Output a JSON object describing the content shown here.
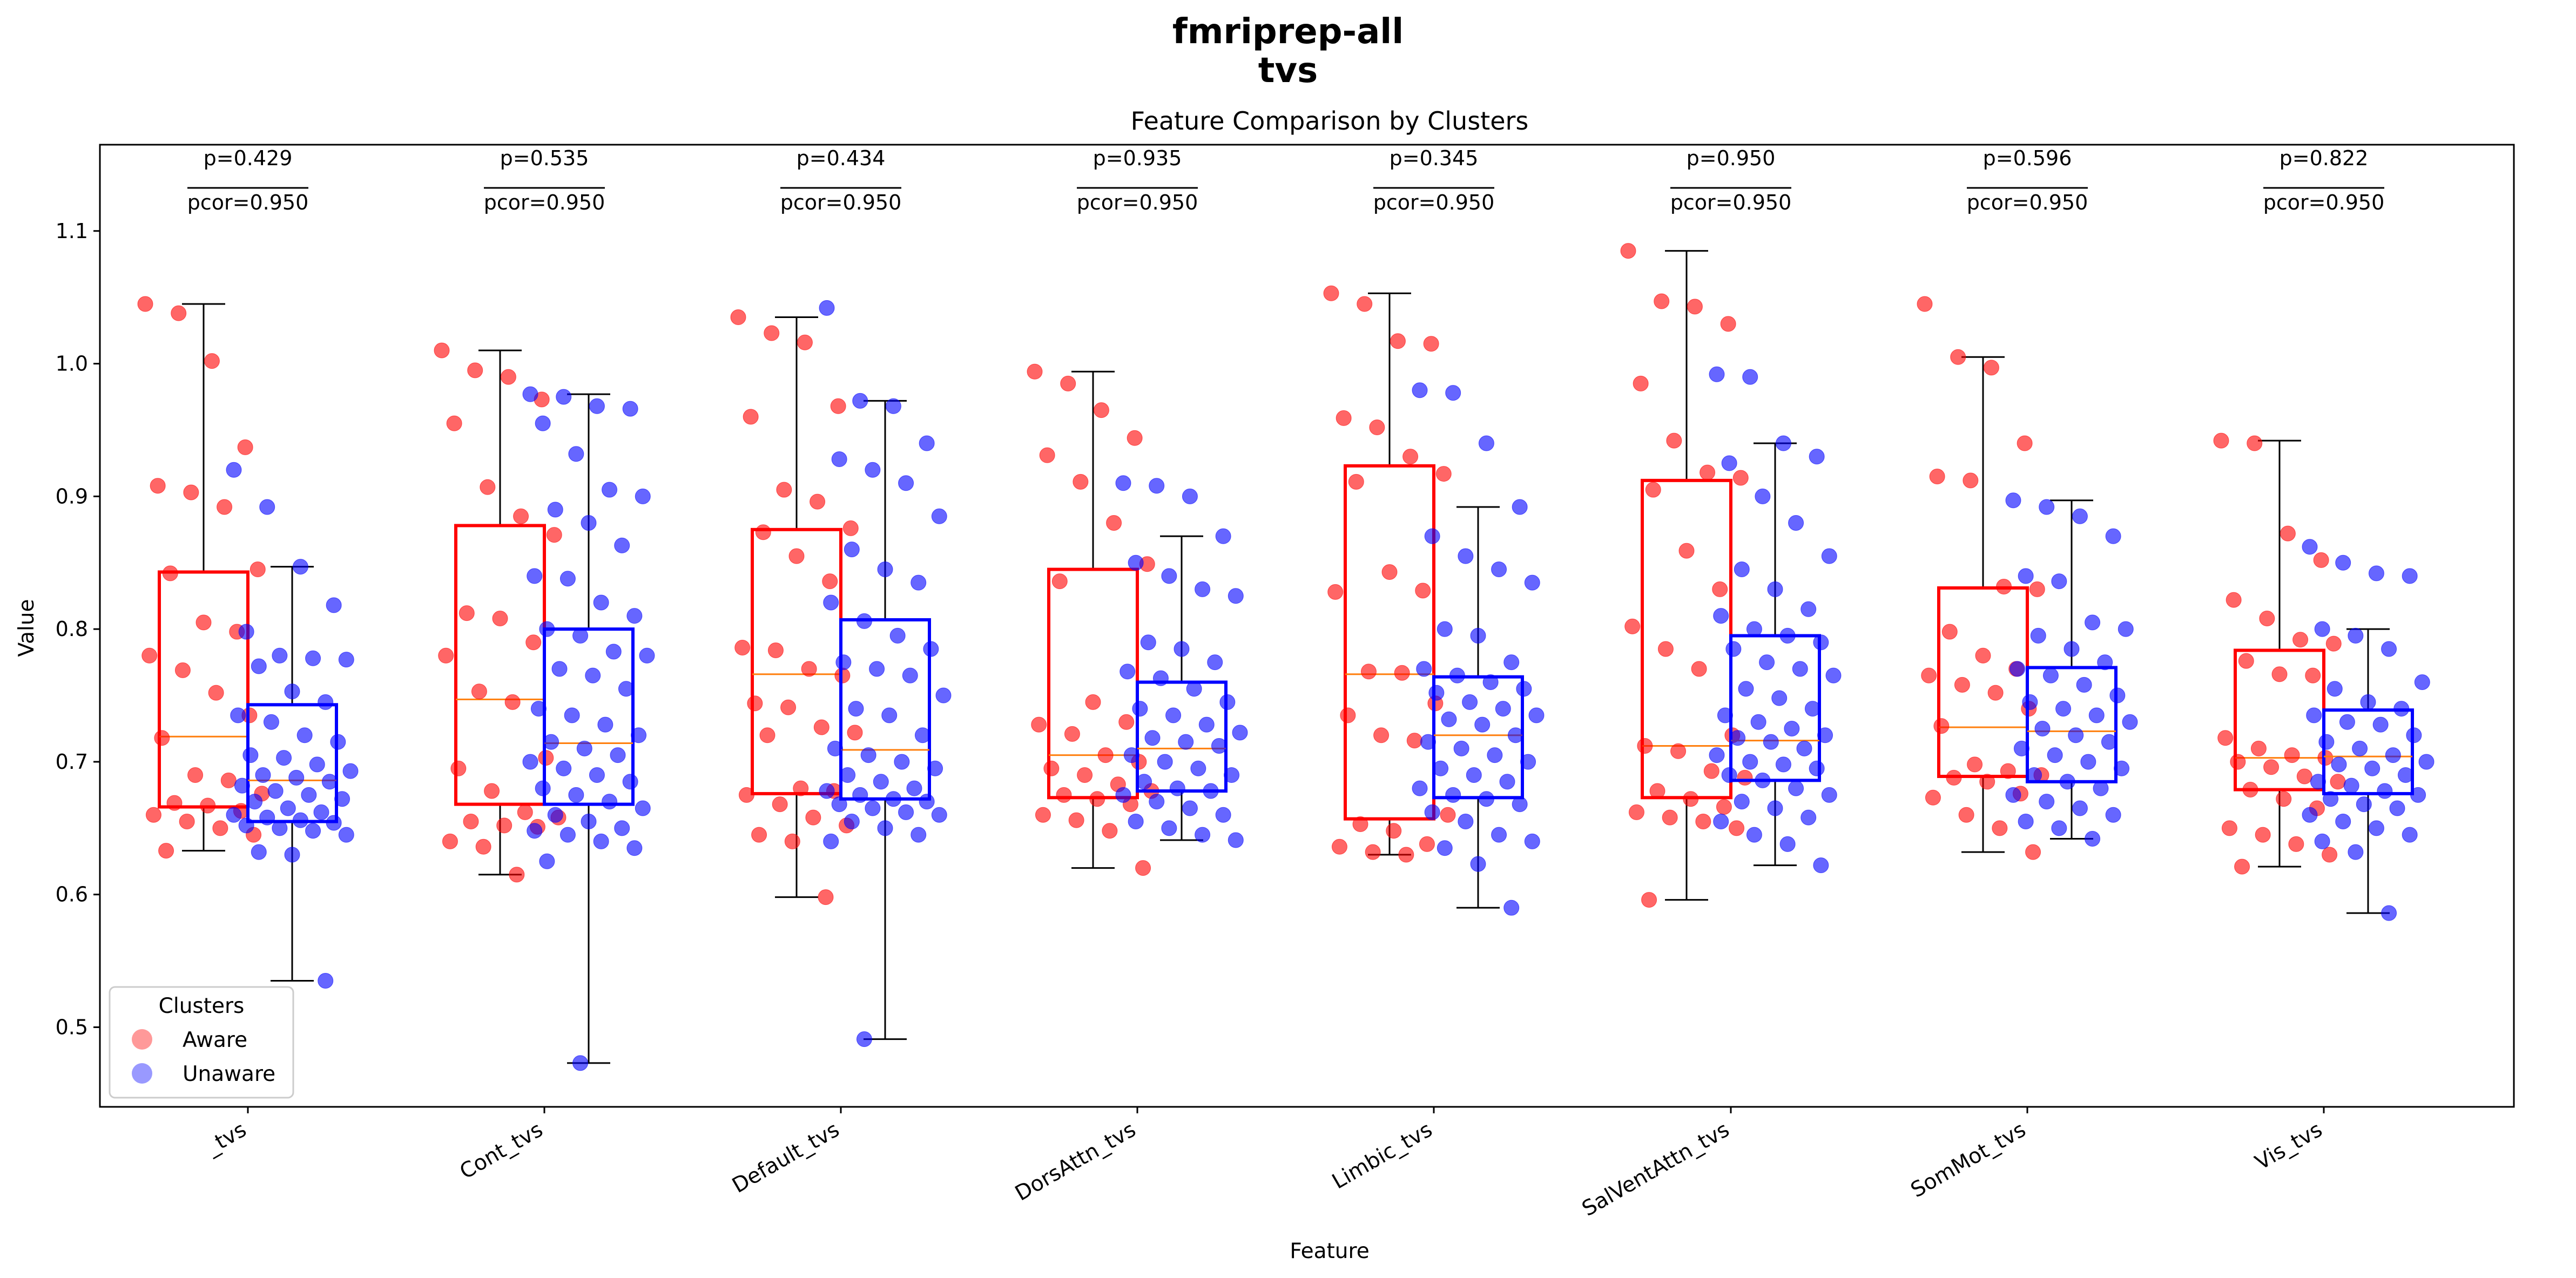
{
  "chart_data": {
    "type": "box",
    "suptitle": [
      "fmriprep-all",
      "tvs"
    ],
    "title": "Feature Comparison by Clusters",
    "xlabel": "Feature",
    "ylabel": "Value",
    "ylim": [
      0.44,
      1.165
    ],
    "yticks": [
      0.5,
      0.6,
      0.7,
      0.8,
      0.9,
      1.0,
      1.1
    ],
    "ytick_labels": [
      "0.5",
      "0.6",
      "0.7",
      "0.8",
      "0.9",
      "1.0",
      "1.1"
    ],
    "grid": false,
    "legend": {
      "title": "Clusters",
      "placement": "lower-left",
      "entries": [
        "Aware",
        "Unaware"
      ]
    },
    "colors": {
      "Aware": "#ff0000",
      "Unaware": "#0000ff",
      "median": "#ff7f0e"
    },
    "categories": [
      "_tvs",
      "Cont_tvs",
      "Default_tvs",
      "DorsAttn_tvs",
      "Limbic_tvs",
      "SalVentAttn_tvs",
      "SomMot_tvs",
      "Vis_tvs"
    ],
    "annotations": [
      {
        "p": "p=0.429",
        "pcor": "pcor=0.950"
      },
      {
        "p": "p=0.535",
        "pcor": "pcor=0.950"
      },
      {
        "p": "p=0.434",
        "pcor": "pcor=0.950"
      },
      {
        "p": "p=0.935",
        "pcor": "pcor=0.950"
      },
      {
        "p": "p=0.345",
        "pcor": "pcor=0.950"
      },
      {
        "p": "p=0.950",
        "pcor": "pcor=0.950"
      },
      {
        "p": "p=0.596",
        "pcor": "pcor=0.950"
      },
      {
        "p": "p=0.822",
        "pcor": "pcor=0.950"
      }
    ],
    "series": [
      {
        "name": "Aware",
        "boxes": [
          {
            "whislo": 0.633,
            "q1": 0.666,
            "med": 0.719,
            "q3": 0.843,
            "whishi": 1.045,
            "points": [
              1.045,
              1.038,
              1.002,
              0.937,
              0.908,
              0.903,
              0.892,
              0.845,
              0.842,
              0.805,
              0.798,
              0.78,
              0.769,
              0.752,
              0.735,
              0.718,
              0.69,
              0.686,
              0.676,
              0.669,
              0.667,
              0.663,
              0.66,
              0.655,
              0.65,
              0.645,
              0.633
            ]
          },
          {
            "whislo": 0.615,
            "q1": 0.668,
            "med": 0.747,
            "q3": 0.878,
            "whishi": 1.01,
            "points": [
              1.01,
              0.995,
              0.99,
              0.973,
              0.955,
              0.907,
              0.885,
              0.871,
              0.812,
              0.808,
              0.79,
              0.78,
              0.753,
              0.745,
              0.703,
              0.695,
              0.678,
              0.662,
              0.658,
              0.655,
              0.652,
              0.651,
              0.64,
              0.636,
              0.615
            ]
          },
          {
            "whislo": 0.598,
            "q1": 0.676,
            "med": 0.766,
            "q3": 0.875,
            "whishi": 1.035,
            "points": [
              1.035,
              1.023,
              1.016,
              0.968,
              0.96,
              0.905,
              0.896,
              0.876,
              0.873,
              0.855,
              0.836,
              0.786,
              0.784,
              0.77,
              0.765,
              0.744,
              0.741,
              0.726,
              0.722,
              0.72,
              0.68,
              0.678,
              0.675,
              0.668,
              0.658,
              0.652,
              0.645,
              0.64,
              0.598
            ]
          },
          {
            "whislo": 0.62,
            "q1": 0.673,
            "med": 0.705,
            "q3": 0.845,
            "whishi": 0.994,
            "points": [
              0.994,
              0.985,
              0.965,
              0.944,
              0.931,
              0.911,
              0.88,
              0.849,
              0.836,
              0.745,
              0.73,
              0.728,
              0.721,
              0.705,
              0.7,
              0.695,
              0.69,
              0.683,
              0.678,
              0.675,
              0.672,
              0.668,
              0.66,
              0.656,
              0.648,
              0.62
            ]
          },
          {
            "whislo": 0.63,
            "q1": 0.657,
            "med": 0.766,
            "q3": 0.923,
            "whishi": 1.053,
            "points": [
              1.053,
              1.045,
              1.017,
              1.015,
              0.959,
              0.952,
              0.93,
              0.917,
              0.911,
              0.843,
              0.829,
              0.828,
              0.768,
              0.767,
              0.744,
              0.735,
              0.72,
              0.716,
              0.66,
              0.653,
              0.648,
              0.638,
              0.636,
              0.632,
              0.63
            ]
          },
          {
            "whislo": 0.596,
            "q1": 0.673,
            "med": 0.712,
            "q3": 0.912,
            "whishi": 1.085,
            "points": [
              1.085,
              1.047,
              1.043,
              1.03,
              0.985,
              0.942,
              0.918,
              0.914,
              0.905,
              0.859,
              0.83,
              0.802,
              0.785,
              0.77,
              0.72,
              0.712,
              0.708,
              0.693,
              0.688,
              0.678,
              0.672,
              0.666,
              0.662,
              0.658,
              0.655,
              0.65,
              0.596
            ]
          },
          {
            "whislo": 0.632,
            "q1": 0.689,
            "med": 0.726,
            "q3": 0.831,
            "whishi": 1.005,
            "points": [
              1.045,
              1.005,
              0.997,
              0.94,
              0.915,
              0.912,
              0.832,
              0.83,
              0.798,
              0.78,
              0.77,
              0.765,
              0.758,
              0.752,
              0.74,
              0.727,
              0.698,
              0.693,
              0.69,
              0.688,
              0.685,
              0.676,
              0.673,
              0.66,
              0.65,
              0.632
            ]
          },
          {
            "whislo": 0.621,
            "q1": 0.679,
            "med": 0.703,
            "q3": 0.784,
            "whishi": 0.942,
            "points": [
              0.942,
              0.94,
              0.872,
              0.852,
              0.822,
              0.808,
              0.792,
              0.789,
              0.776,
              0.766,
              0.765,
              0.718,
              0.71,
              0.705,
              0.703,
              0.7,
              0.696,
              0.689,
              0.685,
              0.679,
              0.672,
              0.665,
              0.65,
              0.645,
              0.638,
              0.63,
              0.621
            ]
          }
        ]
      },
      {
        "name": "Unaware",
        "boxes": [
          {
            "whislo": 0.535,
            "q1": 0.655,
            "med": 0.686,
            "q3": 0.743,
            "whishi": 0.847,
            "points": [
              0.92,
              0.892,
              0.847,
              0.818,
              0.798,
              0.78,
              0.778,
              0.777,
              0.772,
              0.753,
              0.745,
              0.735,
              0.73,
              0.72,
              0.715,
              0.705,
              0.703,
              0.698,
              0.693,
              0.69,
              0.688,
              0.685,
              0.682,
              0.678,
              0.675,
              0.672,
              0.67,
              0.665,
              0.662,
              0.66,
              0.658,
              0.656,
              0.654,
              0.652,
              0.65,
              0.648,
              0.645,
              0.632,
              0.63,
              0.535
            ]
          },
          {
            "whislo": 0.473,
            "q1": 0.668,
            "med": 0.714,
            "q3": 0.8,
            "whishi": 0.977,
            "points": [
              0.977,
              0.975,
              0.968,
              0.966,
              0.955,
              0.932,
              0.905,
              0.9,
              0.89,
              0.88,
              0.863,
              0.84,
              0.838,
              0.82,
              0.81,
              0.8,
              0.795,
              0.783,
              0.78,
              0.77,
              0.765,
              0.755,
              0.74,
              0.735,
              0.728,
              0.72,
              0.715,
              0.71,
              0.705,
              0.7,
              0.695,
              0.69,
              0.685,
              0.68,
              0.675,
              0.67,
              0.665,
              0.66,
              0.655,
              0.65,
              0.648,
              0.645,
              0.64,
              0.635,
              0.625,
              0.473
            ]
          },
          {
            "whislo": 0.491,
            "q1": 0.672,
            "med": 0.709,
            "q3": 0.807,
            "whishi": 0.972,
            "points": [
              1.042,
              0.972,
              0.968,
              0.94,
              0.928,
              0.92,
              0.91,
              0.885,
              0.86,
              0.845,
              0.835,
              0.82,
              0.806,
              0.795,
              0.785,
              0.775,
              0.77,
              0.765,
              0.75,
              0.74,
              0.735,
              0.72,
              0.71,
              0.705,
              0.7,
              0.695,
              0.69,
              0.685,
              0.68,
              0.678,
              0.675,
              0.672,
              0.67,
              0.668,
              0.665,
              0.662,
              0.66,
              0.655,
              0.65,
              0.645,
              0.64,
              0.491
            ]
          },
          {
            "whislo": 0.641,
            "q1": 0.678,
            "med": 0.71,
            "q3": 0.76,
            "whishi": 0.87,
            "points": [
              0.91,
              0.908,
              0.9,
              0.87,
              0.85,
              0.84,
              0.83,
              0.825,
              0.79,
              0.785,
              0.775,
              0.768,
              0.763,
              0.755,
              0.745,
              0.74,
              0.735,
              0.728,
              0.722,
              0.718,
              0.715,
              0.712,
              0.705,
              0.7,
              0.695,
              0.69,
              0.685,
              0.68,
              0.678,
              0.675,
              0.67,
              0.665,
              0.66,
              0.655,
              0.65,
              0.645,
              0.641
            ]
          },
          {
            "whislo": 0.59,
            "q1": 0.673,
            "med": 0.72,
            "q3": 0.764,
            "whishi": 0.892,
            "points": [
              0.98,
              0.978,
              0.94,
              0.892,
              0.87,
              0.855,
              0.845,
              0.835,
              0.8,
              0.795,
              0.775,
              0.77,
              0.765,
              0.76,
              0.755,
              0.752,
              0.745,
              0.74,
              0.735,
              0.732,
              0.728,
              0.72,
              0.715,
              0.71,
              0.705,
              0.7,
              0.695,
              0.69,
              0.685,
              0.68,
              0.675,
              0.672,
              0.668,
              0.662,
              0.655,
              0.645,
              0.64,
              0.635,
              0.623,
              0.59
            ]
          },
          {
            "whislo": 0.622,
            "q1": 0.686,
            "med": 0.716,
            "q3": 0.795,
            "whishi": 0.94,
            "points": [
              0.992,
              0.99,
              0.94,
              0.93,
              0.925,
              0.9,
              0.88,
              0.855,
              0.845,
              0.83,
              0.815,
              0.81,
              0.8,
              0.795,
              0.79,
              0.785,
              0.775,
              0.77,
              0.765,
              0.755,
              0.748,
              0.74,
              0.735,
              0.73,
              0.725,
              0.72,
              0.718,
              0.715,
              0.71,
              0.705,
              0.7,
              0.698,
              0.695,
              0.69,
              0.686,
              0.68,
              0.675,
              0.67,
              0.665,
              0.658,
              0.655,
              0.645,
              0.638,
              0.622
            ]
          },
          {
            "whislo": 0.642,
            "q1": 0.685,
            "med": 0.723,
            "q3": 0.771,
            "whishi": 0.897,
            "points": [
              0.897,
              0.892,
              0.885,
              0.87,
              0.84,
              0.836,
              0.805,
              0.8,
              0.795,
              0.785,
              0.775,
              0.77,
              0.765,
              0.758,
              0.75,
              0.745,
              0.74,
              0.735,
              0.73,
              0.725,
              0.72,
              0.715,
              0.71,
              0.705,
              0.7,
              0.695,
              0.69,
              0.685,
              0.68,
              0.675,
              0.67,
              0.665,
              0.66,
              0.655,
              0.65,
              0.642
            ]
          },
          {
            "whislo": 0.586,
            "q1": 0.676,
            "med": 0.704,
            "q3": 0.739,
            "whishi": 0.8,
            "points": [
              0.862,
              0.85,
              0.842,
              0.84,
              0.8,
              0.795,
              0.785,
              0.76,
              0.755,
              0.745,
              0.74,
              0.735,
              0.73,
              0.728,
              0.72,
              0.715,
              0.71,
              0.705,
              0.7,
              0.698,
              0.695,
              0.69,
              0.685,
              0.682,
              0.678,
              0.675,
              0.672,
              0.668,
              0.665,
              0.66,
              0.655,
              0.65,
              0.645,
              0.64,
              0.632,
              0.586
            ]
          }
        ]
      }
    ]
  }
}
